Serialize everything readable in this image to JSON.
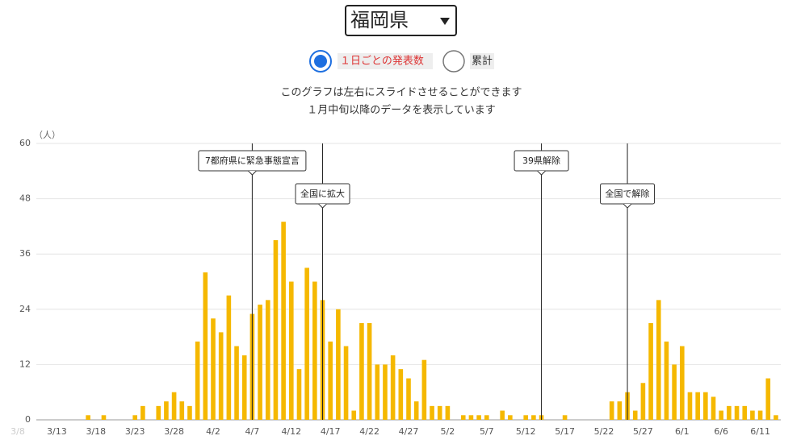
{
  "header": {
    "region": "福岡県",
    "options": [
      "１日ごとの発表数",
      "累計"
    ],
    "notes": [
      "このグラフは左右にスライドさせることができます",
      "１月中旬以降のデータを表示しています"
    ]
  },
  "chart_data": {
    "type": "bar",
    "y_label": "（人）",
    "color": "#f5b800",
    "grid": true,
    "ylim": [
      0,
      60
    ],
    "yticks": [
      0,
      12,
      24,
      36,
      48,
      60
    ],
    "categories": [
      "3/8",
      null,
      null,
      null,
      null,
      "3/13",
      null,
      null,
      null,
      null,
      "3/18",
      null,
      null,
      null,
      null,
      "3/23",
      null,
      null,
      null,
      null,
      "3/28",
      null,
      null,
      null,
      null,
      "4/2",
      null,
      null,
      null,
      null,
      "4/7",
      null,
      null,
      null,
      null,
      "4/12",
      null,
      null,
      null,
      null,
      "4/17",
      null,
      null,
      null,
      null,
      "4/22",
      null,
      null,
      null,
      null,
      "4/27",
      null,
      null,
      null,
      null,
      "5/2",
      null,
      null,
      null,
      null,
      "5/7",
      null,
      null,
      null,
      null,
      "5/12",
      null,
      null,
      null,
      null,
      "5/17",
      null,
      null,
      null,
      null,
      "5/22",
      null,
      null,
      null,
      null,
      "5/27",
      null,
      null,
      null,
      null,
      "6/1",
      null,
      null,
      null,
      null,
      "6/6",
      null,
      null,
      null,
      null,
      "6/11",
      null,
      null
    ],
    "values": [
      0,
      0,
      0,
      0,
      0,
      0,
      0,
      0,
      0,
      1,
      0,
      1,
      0,
      0,
      0,
      1,
      3,
      0,
      3,
      4,
      6,
      4,
      3,
      17,
      32,
      22,
      19,
      27,
      16,
      14,
      23,
      25,
      26,
      39,
      43,
      30,
      11,
      33,
      30,
      26,
      17,
      24,
      16,
      2,
      21,
      21,
      12,
      12,
      14,
      11,
      9,
      4,
      13,
      3,
      3,
      3,
      0,
      1,
      1,
      1,
      1,
      0,
      2,
      1,
      0,
      1,
      1,
      1,
      0,
      0,
      1,
      0,
      0,
      0,
      0,
      0,
      4,
      4,
      6,
      2,
      8,
      21,
      26,
      17,
      12,
      16,
      6,
      6,
      6,
      5,
      2,
      3,
      3,
      3,
      2,
      2,
      9,
      1
    ],
    "annotations": [
      {
        "text": "7都府県に緊急事態宣言",
        "index": 30
      },
      {
        "text": "全国に拡大",
        "index": 39
      },
      {
        "text": "39県解除",
        "index": 67
      },
      {
        "text": "全国で解除",
        "index": 78
      }
    ]
  }
}
